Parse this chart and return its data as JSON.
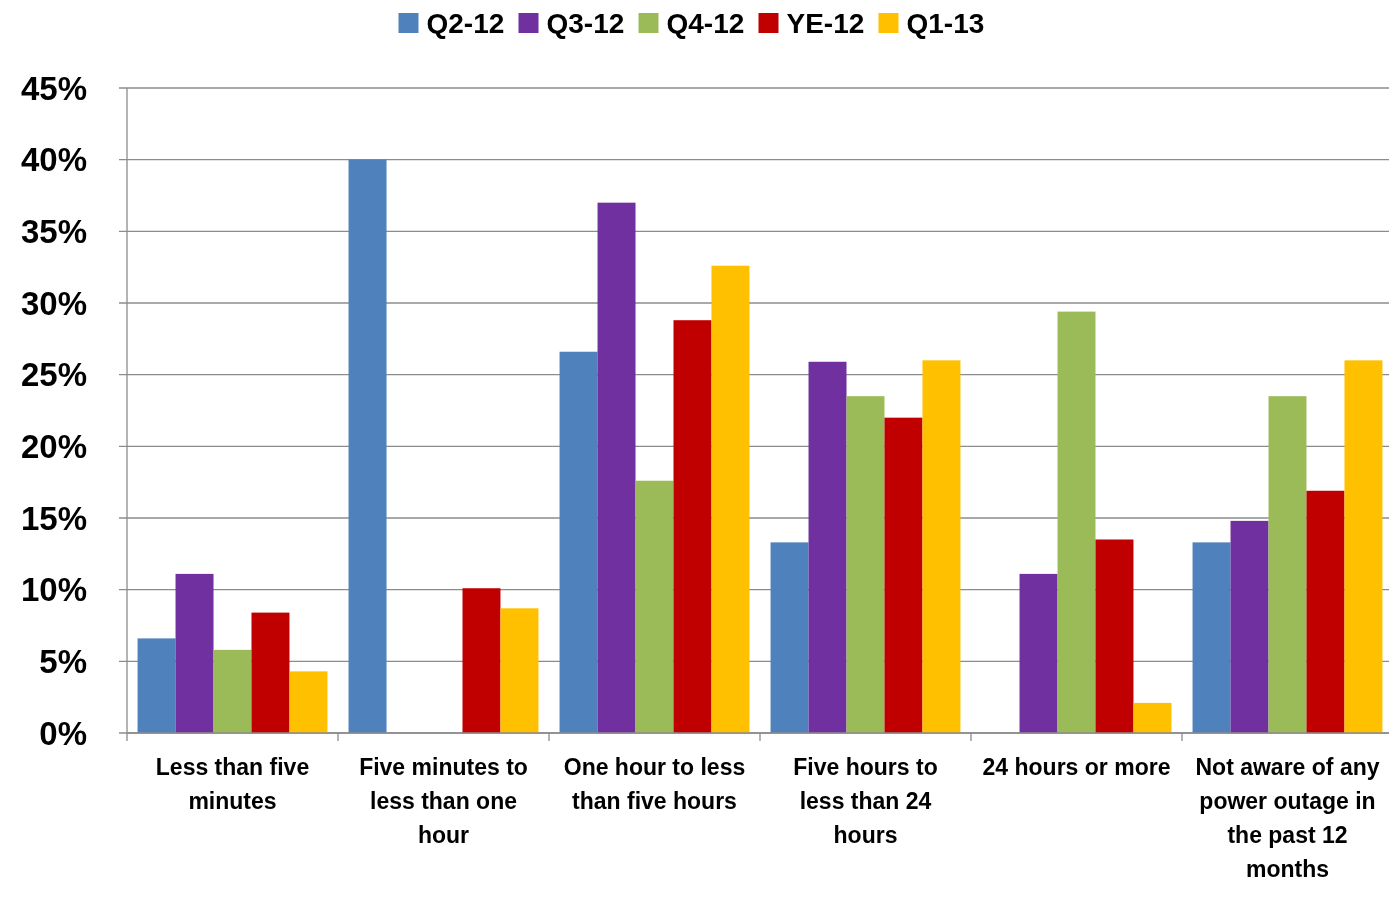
{
  "chart_data": {
    "type": "bar",
    "categories": [
      "Less than five minutes",
      "Five minutes to less than one hour",
      "One hour to less than five hours",
      "Five hours to less than 24 hours",
      "24 hours or more",
      "Not aware of any power outage in the past 12 months"
    ],
    "series": [
      {
        "name": "Q2-12",
        "color": "#4f81bd",
        "values": [
          6.6,
          40.0,
          26.6,
          13.3,
          0,
          13.3
        ]
      },
      {
        "name": "Q3-12",
        "color": "#7030a0",
        "values": [
          11.1,
          0,
          37.0,
          25.9,
          11.1,
          14.8
        ]
      },
      {
        "name": "Q4-12",
        "color": "#9bbb59",
        "values": [
          5.8,
          0,
          17.6,
          23.5,
          29.4,
          23.5
        ]
      },
      {
        "name": "YE-12",
        "color": "#c00000",
        "values": [
          8.4,
          10.1,
          28.8,
          22.0,
          13.5,
          16.9
        ]
      },
      {
        "name": "Q1-13",
        "color": "#ffc000",
        "values": [
          4.3,
          8.7,
          32.6,
          26.0,
          2.1,
          26.0
        ]
      }
    ],
    "ylim": [
      0,
      45
    ],
    "yticks": [
      {
        "value": 0,
        "label": "0%"
      },
      {
        "value": 5,
        "label": "5%"
      },
      {
        "value": 10,
        "label": "10%"
      },
      {
        "value": 15,
        "label": "15%"
      },
      {
        "value": 20,
        "label": "20%"
      },
      {
        "value": 25,
        "label": "25%"
      },
      {
        "value": 30,
        "label": "30%"
      },
      {
        "value": 35,
        "label": "35%"
      },
      {
        "value": 40,
        "label": "40%"
      },
      {
        "value": 45,
        "label": "45%"
      }
    ],
    "grid": "y",
    "legend": "top"
  }
}
